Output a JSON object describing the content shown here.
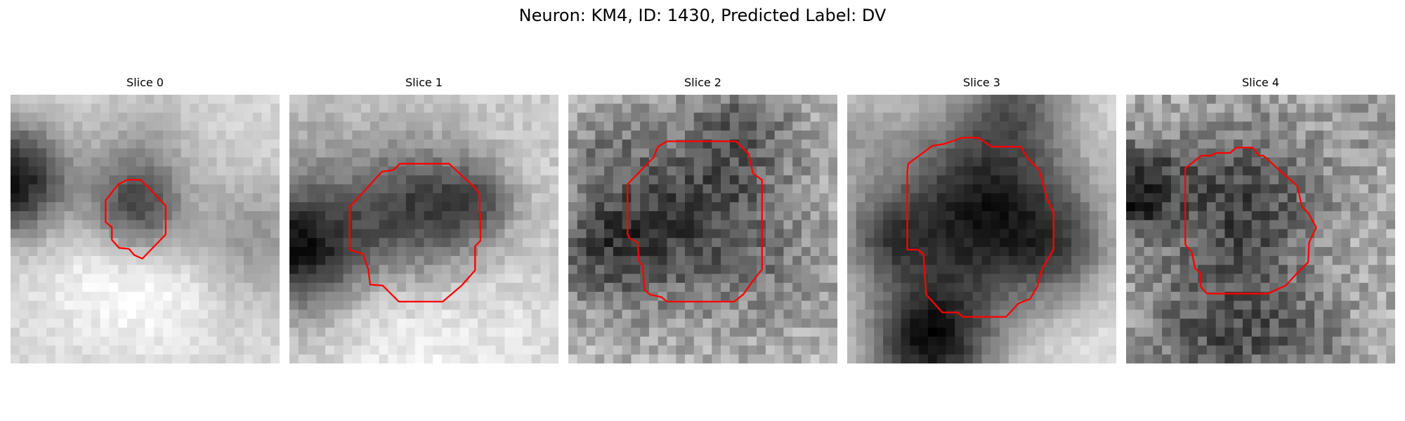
{
  "figure": {
    "title": "Neuron: KM4, ID: 1430, Predicted Label: DV"
  },
  "panels": [
    {
      "title": "Slice 0"
    },
    {
      "title": "Slice 1"
    },
    {
      "title": "Slice 2"
    },
    {
      "title": "Slice 3"
    },
    {
      "title": "Slice 4"
    }
  ],
  "colors": {
    "contour": "#ff0000",
    "background": "#ffffff"
  }
}
